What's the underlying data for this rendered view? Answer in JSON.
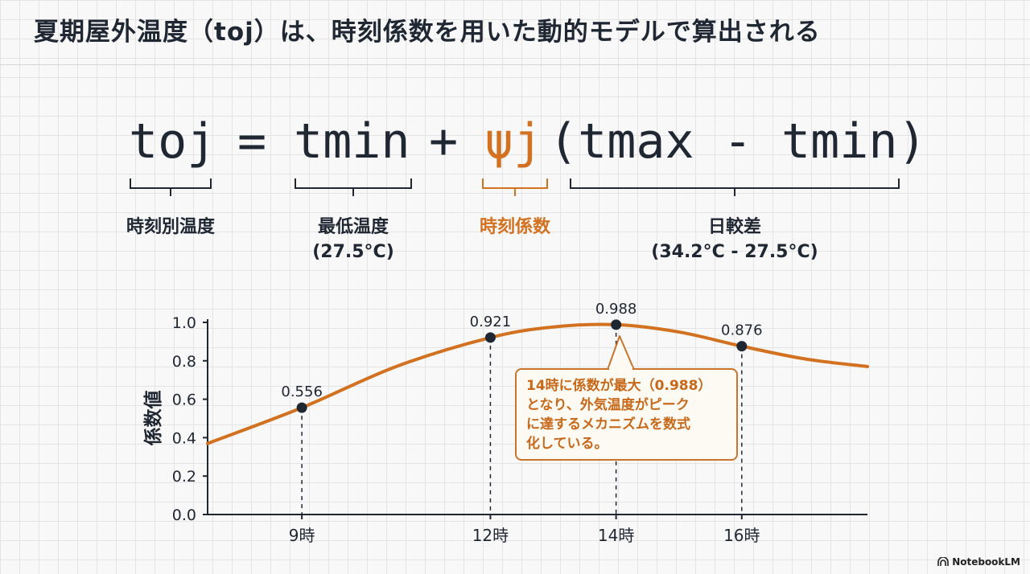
{
  "title": "夏期屋外温度（toj）は、時刻係数を用いた動的モデルで算出される",
  "formula": {
    "lhs": "toj",
    "eq": "=",
    "tmin": "tmin",
    "plus": "+",
    "psi": "ψj",
    "range": "(tmax - tmin)"
  },
  "terms": {
    "toj_label": "時刻別温度",
    "tmin_label": "最低温度",
    "tmin_value": "(27.5°C)",
    "psi_label": "時刻係数",
    "range_label": "日較差",
    "range_value": "(34.2°C - 27.5°C)"
  },
  "colors": {
    "accent": "#d2711f",
    "text": "#1f2733"
  },
  "callout": {
    "lines": [
      "14時に係数が最大（0.988）",
      "となり、外気温度がピーク",
      "に達するメカニズムを数式",
      "化している。"
    ]
  },
  "brand": "NotebookLM",
  "chart_data": {
    "type": "line",
    "ylabel": "係数値",
    "ylim": [
      0,
      1.0
    ],
    "yticks": [
      "0.0",
      "0.2",
      "0.4",
      "0.6",
      "0.8",
      "1.0"
    ],
    "xticks": [
      {
        "x": 9,
        "label": "9時"
      },
      {
        "x": 12,
        "label": "12時"
      },
      {
        "x": 14,
        "label": "14時"
      },
      {
        "x": 16,
        "label": "16時"
      }
    ],
    "x_range": [
      7.5,
      18.0
    ],
    "curve": [
      [
        7.5,
        0.37
      ],
      [
        9,
        0.556
      ],
      [
        10.5,
        0.77
      ],
      [
        12,
        0.921
      ],
      [
        13,
        0.976
      ],
      [
        14,
        0.988
      ],
      [
        15,
        0.95
      ],
      [
        16,
        0.876
      ],
      [
        17,
        0.81
      ],
      [
        18,
        0.77
      ]
    ],
    "points": [
      {
        "x": 9,
        "y": 0.556,
        "label": "0.556"
      },
      {
        "x": 12,
        "y": 0.921,
        "label": "0.921"
      },
      {
        "x": 14,
        "y": 0.988,
        "label": "0.988"
      },
      {
        "x": 16,
        "y": 0.876,
        "label": "0.876"
      }
    ]
  }
}
